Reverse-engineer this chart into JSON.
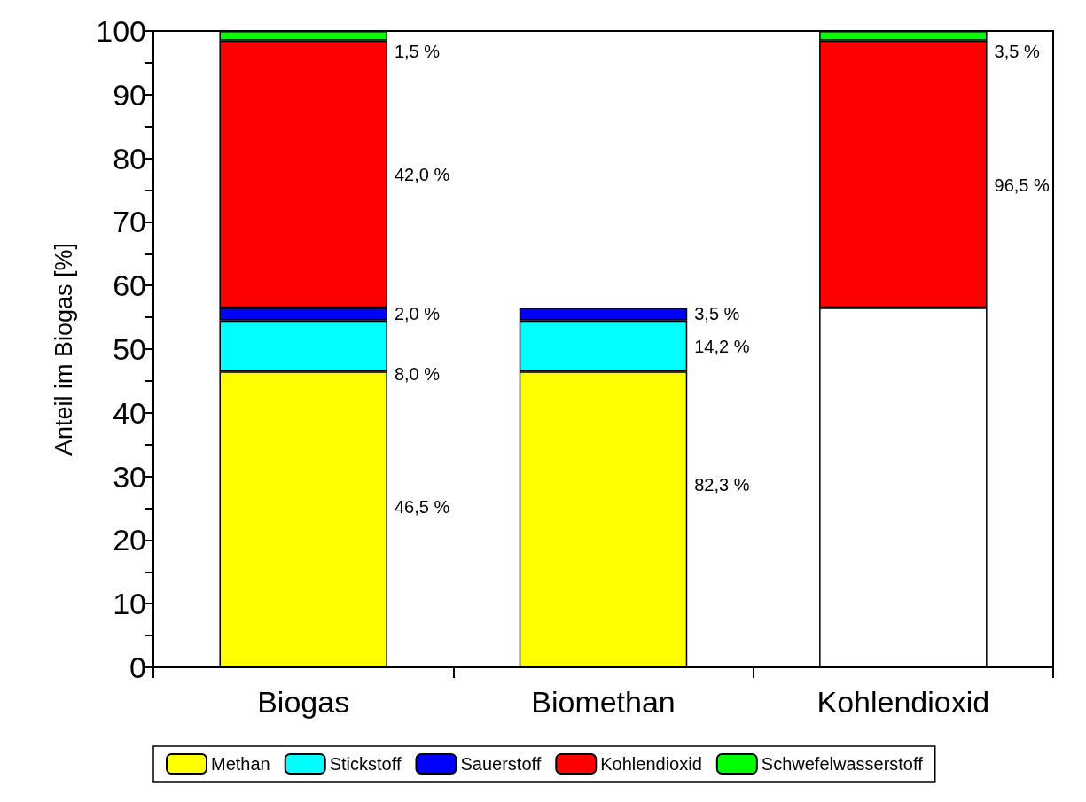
{
  "chart_data": {
    "type": "bar",
    "stacked": true,
    "ylabel": "Anteil im Biogas [%]",
    "categories": [
      "Biogas",
      "Biomethan",
      "Kohlendioxid"
    ],
    "ylim": [
      0,
      100
    ],
    "yticks": [
      0,
      {
        "value": 5,
        "label": null
      },
      10,
      {
        "value": 15,
        "label": null
      },
      20,
      {
        "value": 25,
        "label": null
      },
      30,
      {
        "value": 35,
        "label": null
      },
      40,
      {
        "value": 45,
        "label": null
      },
      50,
      {
        "value": 55,
        "label": null
      },
      60,
      {
        "value": 65,
        "label": null
      },
      70,
      {
        "value": 75,
        "label": null
      },
      80,
      {
        "value": 85,
        "label": null
      },
      90,
      {
        "value": 95,
        "label": null
      },
      100
    ],
    "grid": false,
    "legend": "bottom",
    "series": [
      {
        "name": "Methan",
        "color": "#ffff00",
        "values": [
          46.5,
          46.5,
          null
        ]
      },
      {
        "name": "Stickstoff",
        "color": "#00ffff",
        "values": [
          8.0,
          8.0,
          null
        ]
      },
      {
        "name": "Sauerstoff",
        "color": "#0000ff",
        "values": [
          2.0,
          2.0,
          null
        ]
      },
      {
        "color": "#ffffff",
        "values": [
          null,
          null,
          56.5
        ]
      },
      {
        "name": "Kohlendioxid",
        "color": "#ff0000",
        "values": [
          42.0,
          null,
          42.0
        ]
      },
      {
        "name": "Schwefelwasserstoff",
        "color": "#00ff00",
        "values": [
          1.5,
          null,
          1.5
        ]
      }
    ],
    "annotations": [
      "1,5 %",
      "42,0 %",
      "2,0 %",
      "8,0 %",
      "46,5 %",
      "3,5 %",
      "14,2 %",
      "82,3 %",
      "3,5 %",
      "96,5 %"
    ]
  }
}
